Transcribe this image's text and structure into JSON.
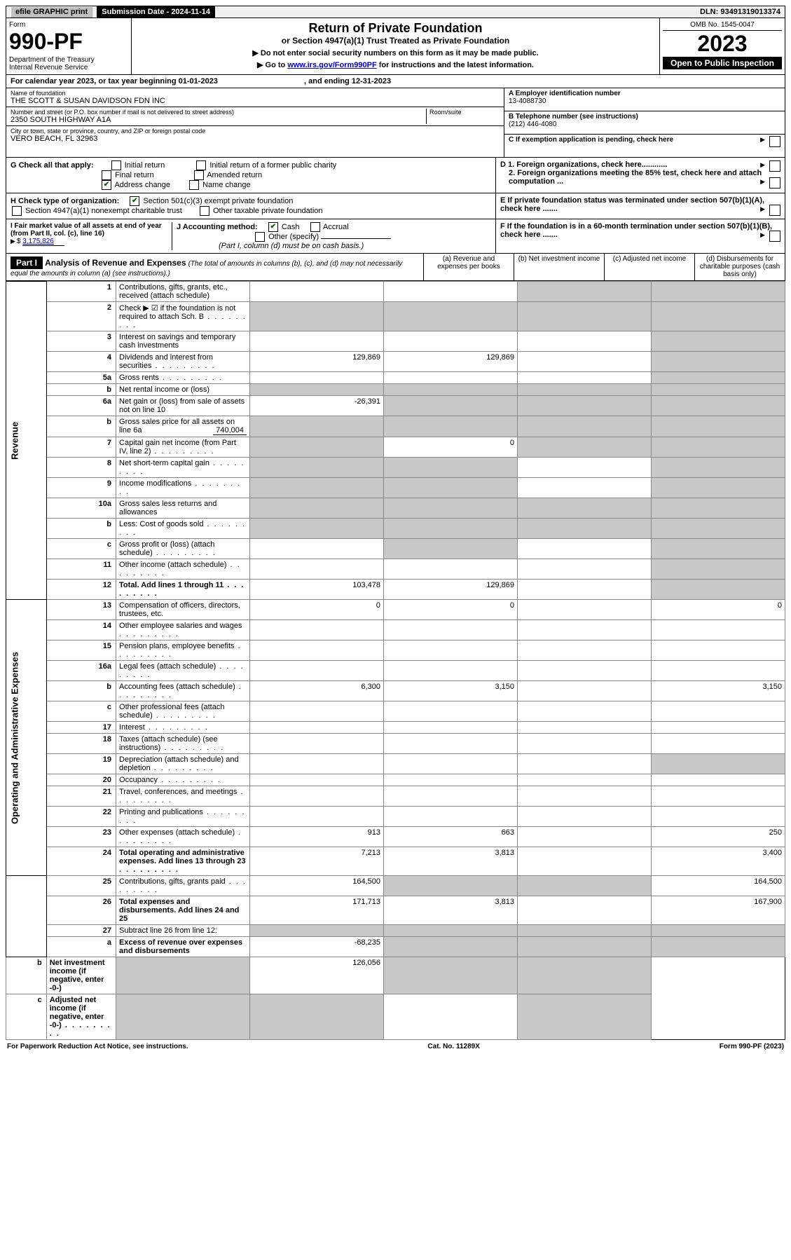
{
  "top": {
    "efile": "efile GRAPHIC print",
    "sub_label": "Submission Date - 2024-11-14",
    "dln": "DLN: 93491319013374"
  },
  "hdr": {
    "form": "Form",
    "form_no": "990-PF",
    "dept": "Department of the Treasury\nInternal Revenue Service",
    "title": "Return of Private Foundation",
    "subtitle": "or Section 4947(a)(1) Trust Treated as Private Foundation",
    "note1": "▶ Do not enter social security numbers on this form as it may be made public.",
    "note2_pre": "▶ Go to ",
    "note2_link": "www.irs.gov/Form990PF",
    "note2_post": " for instructions and the latest information.",
    "omb": "OMB No. 1545-0047",
    "year": "2023",
    "open": "Open to Public Inspection"
  },
  "cal": {
    "text_pre": "For calendar year 2023, or tax year beginning ",
    "begin": "01-01-2023",
    "text_mid": " , and ending ",
    "end": "12-31-2023"
  },
  "info": {
    "name_lbl": "Name of foundation",
    "name": "THE SCOTT & SUSAN DAVIDSON FDN INC",
    "addr_lbl": "Number and street (or P.O. box number if mail is not delivered to street address)",
    "addr": "2350 SOUTH HIGHWAY A1A",
    "room_lbl": "Room/suite",
    "city_lbl": "City or town, state or province, country, and ZIP or foreign postal code",
    "city": "VERO BEACH, FL  32963",
    "a_lbl": "A Employer identification number",
    "a_val": "13-4088730",
    "b_lbl": "B Telephone number (see instructions)",
    "b_val": "(212) 446-4080",
    "c_lbl": "C If exemption application is pending, check here"
  },
  "g": {
    "lbl": "G Check all that apply:",
    "opts": [
      "Initial return",
      "Final return",
      "Address change",
      "Initial return of a former public charity",
      "Amended return",
      "Name change"
    ],
    "checked_idx": 2
  },
  "h": {
    "lbl": "H Check type of organization:",
    "o1": "Section 501(c)(3) exempt private foundation",
    "o2": "Section 4947(a)(1) nonexempt charitable trust",
    "o3": "Other taxable private foundation"
  },
  "i": {
    "lbl": "I Fair market value of all assets at end of year (from Part II, col. (c), line 16)",
    "val": "3,175,826"
  },
  "j": {
    "lbl": "J Accounting method:",
    "o1": "Cash",
    "o2": "Accrual",
    "o3": "Other (specify)",
    "note": "(Part I, column (d) must be on cash basis.)"
  },
  "d": {
    "d1": "D 1. Foreign organizations, check here............",
    "d2": "2. Foreign organizations meeting the 85% test, check here and attach computation ..."
  },
  "e": {
    "lbl": "E  If private foundation status was terminated under section 507(b)(1)(A), check here ......."
  },
  "f": {
    "lbl": "F  If the foundation is in a 60-month termination under section 507(b)(1)(B), check here ......."
  },
  "part1": {
    "label": "Part I",
    "title": "Analysis of Revenue and Expenses",
    "sub": "(The total of amounts in columns (b), (c), and (d) may not necessarily equal the amounts in column (a) (see instructions).)",
    "col_a": "(a)   Revenue and expenses per books",
    "col_b": "(b)   Net investment income",
    "col_c": "(c)   Adjusted net income",
    "col_d": "(d)   Disbursements for charitable purposes (cash basis only)"
  },
  "side": {
    "rev": "Revenue",
    "exp": "Operating and Administrative Expenses"
  },
  "rows": [
    {
      "ln": "1",
      "desc": "Contributions, gifts, grants, etc., received (attach schedule)",
      "a": "",
      "b": "",
      "c": "s",
      "d": "s"
    },
    {
      "ln": "2",
      "desc": "Check ▶ ☑ if the foundation is not required to attach Sch. B",
      "dots": true,
      "a": "s",
      "b": "s",
      "c": "s",
      "d": "s"
    },
    {
      "ln": "3",
      "desc": "Interest on savings and temporary cash investments",
      "a": "",
      "b": "",
      "c": "",
      "d": "s"
    },
    {
      "ln": "4",
      "desc": "Dividends and interest from securities",
      "dots": true,
      "a": "129,869",
      "b": "129,869",
      "c": "",
      "d": "s"
    },
    {
      "ln": "5a",
      "desc": "Gross rents",
      "dots": true,
      "a": "",
      "b": "",
      "c": "",
      "d": "s"
    },
    {
      "ln": "b",
      "desc": "Net rental income or (loss)",
      "a": "s",
      "b": "s",
      "c": "s",
      "d": "s"
    },
    {
      "ln": "6a",
      "desc": "Net gain or (loss) from sale of assets not on line 10",
      "a": "-26,391",
      "b": "s",
      "c": "s",
      "d": "s"
    },
    {
      "ln": "b",
      "desc": "Gross sales price for all assets on line 6a",
      "inline": "740,004",
      "a": "s",
      "b": "s",
      "c": "s",
      "d": "s"
    },
    {
      "ln": "7",
      "desc": "Capital gain net income (from Part IV, line 2)",
      "dots": true,
      "a": "s",
      "b": "0",
      "c": "s",
      "d": "s"
    },
    {
      "ln": "8",
      "desc": "Net short-term capital gain",
      "dots": true,
      "a": "s",
      "b": "s",
      "c": "",
      "d": "s"
    },
    {
      "ln": "9",
      "desc": "Income modifications",
      "dots": true,
      "a": "s",
      "b": "s",
      "c": "",
      "d": "s"
    },
    {
      "ln": "10a",
      "desc": "Gross sales less returns and allowances",
      "a": "s",
      "b": "s",
      "c": "s",
      "d": "s"
    },
    {
      "ln": "b",
      "desc": "Less: Cost of goods sold",
      "dots": true,
      "a": "s",
      "b": "s",
      "c": "s",
      "d": "s"
    },
    {
      "ln": "c",
      "desc": "Gross profit or (loss) (attach schedule)",
      "dots": true,
      "a": "",
      "b": "s",
      "c": "",
      "d": "s"
    },
    {
      "ln": "11",
      "desc": "Other income (attach schedule)",
      "dots": true,
      "a": "",
      "b": "",
      "c": "",
      "d": "s"
    },
    {
      "ln": "12",
      "desc": "Total. Add lines 1 through 11",
      "dots": true,
      "bold": true,
      "a": "103,478",
      "b": "129,869",
      "c": "",
      "d": "s"
    },
    {
      "ln": "13",
      "desc": "Compensation of officers, directors, trustees, etc.",
      "a": "0",
      "b": "0",
      "c": "",
      "d": "0"
    },
    {
      "ln": "14",
      "desc": "Other employee salaries and wages",
      "dots": true,
      "a": "",
      "b": "",
      "c": "",
      "d": ""
    },
    {
      "ln": "15",
      "desc": "Pension plans, employee benefits",
      "dots": true,
      "a": "",
      "b": "",
      "c": "",
      "d": ""
    },
    {
      "ln": "16a",
      "desc": "Legal fees (attach schedule)",
      "dots": true,
      "a": "",
      "b": "",
      "c": "",
      "d": ""
    },
    {
      "ln": "b",
      "desc": "Accounting fees (attach schedule)",
      "dots": true,
      "a": "6,300",
      "b": "3,150",
      "c": "",
      "d": "3,150"
    },
    {
      "ln": "c",
      "desc": "Other professional fees (attach schedule)",
      "dots": true,
      "a": "",
      "b": "",
      "c": "",
      "d": ""
    },
    {
      "ln": "17",
      "desc": "Interest",
      "dots": true,
      "a": "",
      "b": "",
      "c": "",
      "d": ""
    },
    {
      "ln": "18",
      "desc": "Taxes (attach schedule) (see instructions)",
      "dots": true,
      "a": "",
      "b": "",
      "c": "",
      "d": ""
    },
    {
      "ln": "19",
      "desc": "Depreciation (attach schedule) and depletion",
      "dots": true,
      "a": "",
      "b": "",
      "c": "",
      "d": "s"
    },
    {
      "ln": "20",
      "desc": "Occupancy",
      "dots": true,
      "a": "",
      "b": "",
      "c": "",
      "d": ""
    },
    {
      "ln": "21",
      "desc": "Travel, conferences, and meetings",
      "dots": true,
      "a": "",
      "b": "",
      "c": "",
      "d": ""
    },
    {
      "ln": "22",
      "desc": "Printing and publications",
      "dots": true,
      "a": "",
      "b": "",
      "c": "",
      "d": ""
    },
    {
      "ln": "23",
      "desc": "Other expenses (attach schedule)",
      "dots": true,
      "a": "913",
      "b": "663",
      "c": "",
      "d": "250"
    },
    {
      "ln": "24",
      "desc": "Total operating and administrative expenses. Add lines 13 through 23",
      "dots": true,
      "bold": true,
      "a": "7,213",
      "b": "3,813",
      "c": "",
      "d": "3,400"
    },
    {
      "ln": "25",
      "desc": "Contributions, gifts, grants paid",
      "dots": true,
      "a": "164,500",
      "b": "s",
      "c": "s",
      "d": "164,500"
    },
    {
      "ln": "26",
      "desc": "Total expenses and disbursements. Add lines 24 and 25",
      "bold": true,
      "a": "171,713",
      "b": "3,813",
      "c": "",
      "d": "167,900"
    },
    {
      "ln": "27",
      "desc": "Subtract line 26 from line 12:",
      "a": "s",
      "b": "s",
      "c": "s",
      "d": "s"
    },
    {
      "ln": "a",
      "desc": "Excess of revenue over expenses and disbursements",
      "bold": true,
      "a": "-68,235",
      "b": "s",
      "c": "s",
      "d": "s"
    },
    {
      "ln": "b",
      "desc": "Net investment income (if negative, enter -0-)",
      "bold": true,
      "a": "s",
      "b": "126,056",
      "c": "s",
      "d": "s"
    },
    {
      "ln": "c",
      "desc": "Adjusted net income (if negative, enter -0-)",
      "dots": true,
      "bold": true,
      "a": "s",
      "b": "s",
      "c": "",
      "d": "s"
    }
  ],
  "footer": {
    "left": "For Paperwork Reduction Act Notice, see instructions.",
    "mid": "Cat. No. 11289X",
    "right": "Form 990-PF (2023)"
  },
  "colors": {
    "shade": "#c8c8c8",
    "link": "#0000cc",
    "check": "#006000"
  }
}
